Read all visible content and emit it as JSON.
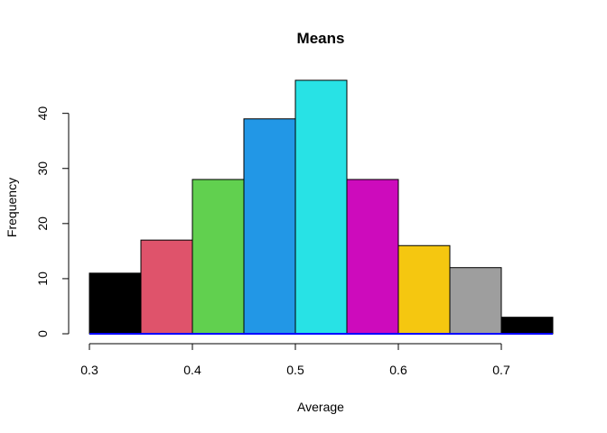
{
  "chart_data": {
    "type": "bar",
    "title": "Means",
    "xlabel": "Average",
    "ylabel": "Frequency",
    "bins": [
      {
        "from": 0.3,
        "to": 0.35,
        "value": 11,
        "color": "#000000"
      },
      {
        "from": 0.35,
        "to": 0.4,
        "value": 17,
        "color": "#DF536B"
      },
      {
        "from": 0.4,
        "to": 0.45,
        "value": 28,
        "color": "#61D04F"
      },
      {
        "from": 0.45,
        "to": 0.5,
        "value": 39,
        "color": "#2297E6"
      },
      {
        "from": 0.5,
        "to": 0.55,
        "value": 46,
        "color": "#28E2E5"
      },
      {
        "from": 0.55,
        "to": 0.6,
        "value": 28,
        "color": "#CD0BBC"
      },
      {
        "from": 0.6,
        "to": 0.65,
        "value": 16,
        "color": "#F5C710"
      },
      {
        "from": 0.65,
        "to": 0.7,
        "value": 12,
        "color": "#9E9E9E"
      },
      {
        "from": 0.7,
        "to": 0.75,
        "value": 3,
        "color": "#000000"
      }
    ],
    "xlim": [
      0.3,
      0.75
    ],
    "ylim": [
      0,
      46
    ],
    "xticks": [
      "0.3",
      "0.4",
      "0.5",
      "0.6",
      "0.7"
    ],
    "yticks": [
      "0",
      "10",
      "20",
      "30",
      "40"
    ],
    "baseline_color": "#0000FF",
    "grid": false,
    "legend": "none"
  }
}
